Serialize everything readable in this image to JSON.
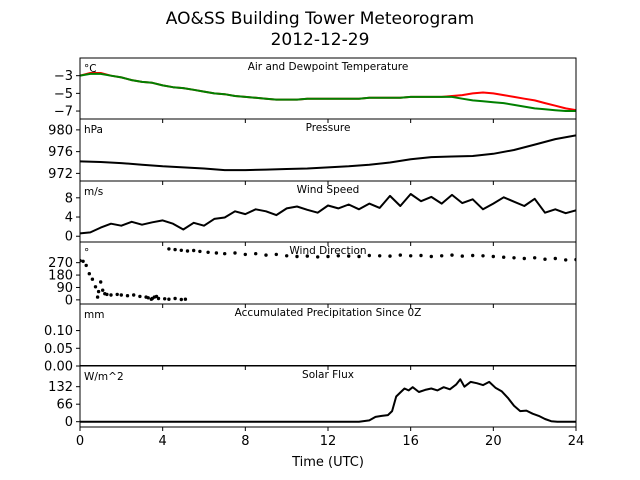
{
  "figure": {
    "title": "AO&SS Building Tower Meteorogram",
    "subtitle": "2012-12-29",
    "xlabel": "Time (UTC)",
    "x_ticks": [
      0,
      4,
      8,
      12,
      16,
      20,
      24
    ],
    "xlim": [
      0,
      24
    ]
  },
  "chart_data": [
    {
      "id": "temperature",
      "type": "line",
      "title": "Air and Dewpoint Temperature",
      "unit_label": "°C",
      "ylim": [
        -7.9,
        -1.0
      ],
      "y_ticks": [
        -3,
        -5,
        -7
      ],
      "y_tick_labels": [
        "−3",
        "−5",
        "−7"
      ],
      "series": [
        {
          "color": "#ff0000",
          "x": [
            0,
            0.5,
            1,
            1.5,
            2,
            2.5,
            3,
            3.5,
            4,
            4.5,
            5,
            5.5,
            6,
            6.5,
            7,
            7.5,
            8,
            8.5,
            9,
            9.5,
            10,
            10.5,
            11,
            11.5,
            12,
            12.5,
            13,
            13.5,
            14,
            14.5,
            15,
            15.5,
            16,
            16.5,
            17,
            17.5,
            18,
            18.5,
            19,
            19.5,
            20,
            20.5,
            21,
            21.5,
            22,
            22.5,
            23,
            23.5,
            24
          ],
          "y": [
            -3.0,
            -2.7,
            -2.7,
            -3.0,
            -3.2,
            -3.5,
            -3.7,
            -3.8,
            -4.1,
            -4.3,
            -4.4,
            -4.6,
            -4.8,
            -5.0,
            -5.1,
            -5.3,
            -5.4,
            -5.5,
            -5.6,
            -5.7,
            -5.7,
            -5.7,
            -5.6,
            -5.6,
            -5.6,
            -5.6,
            -5.6,
            -5.6,
            -5.5,
            -5.5,
            -5.5,
            -5.5,
            -5.4,
            -5.4,
            -5.4,
            -5.4,
            -5.3,
            -5.2,
            -5.0,
            -4.9,
            -5.0,
            -5.2,
            -5.4,
            -5.6,
            -5.8,
            -6.1,
            -6.4,
            -6.7,
            -6.9
          ]
        },
        {
          "color": "#008000",
          "x": [
            0,
            0.5,
            1,
            1.5,
            2,
            2.5,
            3,
            3.5,
            4,
            4.5,
            5,
            5.5,
            6,
            6.5,
            7,
            7.5,
            8,
            8.5,
            9,
            9.5,
            10,
            10.5,
            11,
            11.5,
            12,
            12.5,
            13,
            13.5,
            14,
            14.5,
            15,
            15.5,
            16,
            16.5,
            17,
            17.5,
            18,
            18.5,
            19,
            19.5,
            20,
            20.5,
            21,
            21.5,
            22,
            22.5,
            23,
            23.5,
            24
          ],
          "y": [
            -3.0,
            -2.8,
            -2.8,
            -3.0,
            -3.2,
            -3.5,
            -3.7,
            -3.8,
            -4.1,
            -4.3,
            -4.4,
            -4.6,
            -4.8,
            -5.0,
            -5.1,
            -5.3,
            -5.4,
            -5.5,
            -5.6,
            -5.7,
            -5.7,
            -5.7,
            -5.6,
            -5.6,
            -5.6,
            -5.6,
            -5.6,
            -5.6,
            -5.5,
            -5.5,
            -5.5,
            -5.5,
            -5.4,
            -5.4,
            -5.4,
            -5.4,
            -5.4,
            -5.6,
            -5.8,
            -5.9,
            -6.0,
            -6.1,
            -6.3,
            -6.5,
            -6.7,
            -6.8,
            -6.9,
            -7.0,
            -7.0
          ]
        }
      ]
    },
    {
      "id": "pressure",
      "type": "line",
      "title": "Pressure",
      "unit_label": "hPa",
      "ylim": [
        970.6,
        982.0
      ],
      "y_ticks": [
        980,
        976,
        972
      ],
      "y_tick_labels": [
        "980",
        "976",
        "972"
      ],
      "series": [
        {
          "color": "#000000",
          "x": [
            0,
            1,
            2,
            3,
            4,
            5,
            6,
            7,
            8,
            9,
            10,
            11,
            12,
            13,
            14,
            15,
            16,
            17,
            18,
            19,
            20,
            21,
            22,
            23,
            24
          ],
          "y": [
            974.2,
            974.1,
            973.9,
            973.6,
            973.3,
            973.1,
            972.9,
            972.6,
            972.6,
            972.7,
            972.8,
            972.9,
            973.1,
            973.3,
            973.6,
            974.0,
            974.6,
            975.0,
            975.1,
            975.2,
            975.6,
            976.3,
            977.3,
            978.3,
            979.0
          ]
        }
      ]
    },
    {
      "id": "wind_speed",
      "type": "line",
      "title": "Wind Speed",
      "unit_label": "m/s",
      "ylim": [
        -1.2,
        11.5
      ],
      "y_ticks": [
        8,
        4,
        0
      ],
      "y_tick_labels": [
        "8",
        "4",
        "0"
      ],
      "series": [
        {
          "color": "#000000",
          "x": [
            0,
            0.5,
            1,
            1.5,
            2,
            2.5,
            3,
            3.5,
            4,
            4.5,
            5,
            5.5,
            6,
            6.5,
            7,
            7.5,
            8,
            8.5,
            9,
            9.5,
            10,
            10.5,
            11,
            11.5,
            12,
            12.5,
            13,
            13.5,
            14,
            14.5,
            15,
            15.5,
            16,
            16.5,
            17,
            17.5,
            18,
            18.5,
            19,
            19.5,
            20,
            20.5,
            21,
            21.5,
            22,
            22.5,
            23,
            23.5,
            24
          ],
          "y": [
            0.6,
            0.8,
            1.8,
            2.6,
            2.2,
            3.0,
            2.4,
            2.9,
            3.3,
            2.6,
            1.4,
            2.8,
            2.2,
            3.6,
            3.9,
            5.2,
            4.6,
            5.6,
            5.2,
            4.4,
            5.8,
            6.2,
            5.5,
            4.9,
            6.4,
            5.8,
            6.6,
            5.6,
            6.8,
            5.9,
            8.4,
            6.3,
            8.8,
            7.3,
            8.2,
            6.8,
            8.6,
            6.9,
            7.7,
            5.6,
            6.8,
            8.1,
            7.2,
            6.3,
            7.8,
            4.9,
            5.6,
            4.8,
            5.4
          ]
        }
      ]
    },
    {
      "id": "wind_direction",
      "type": "scatter",
      "title": "Wind Direction",
      "unit_label": "°",
      "ylim": [
        -30,
        420
      ],
      "y_ticks": [
        270,
        180,
        90,
        0
      ],
      "y_tick_labels": [
        "270",
        "180",
        "90",
        "0"
      ],
      "series": [
        {
          "color": "#000000",
          "x": [
            0,
            0.15,
            0.3,
            0.45,
            0.6,
            0.75,
            0.85,
            0.9,
            1.0,
            1.1,
            1.2,
            1.3,
            1.5,
            1.8,
            2.0,
            2.3,
            2.6,
            2.9,
            3.2,
            3.5,
            3.7,
            3.3,
            3.45,
            3.6,
            3.8,
            4.1,
            4.3,
            4.6,
            4.9,
            5.1,
            4.3,
            4.6,
            4.9,
            5.2,
            5.5,
            5.8,
            6.2,
            6.6,
            7.0,
            7.5,
            8.0,
            8.5,
            9.0,
            9.5,
            10.0,
            10.5,
            11.0,
            11.5,
            12.0,
            12.5,
            13.0,
            13.5,
            14.0,
            14.5,
            15.0,
            15.5,
            16.0,
            16.5,
            17.0,
            17.5,
            18.0,
            18.5,
            19.0,
            19.5,
            20.0,
            20.5,
            21.0,
            21.5,
            22.0,
            22.5,
            23.0,
            23.5,
            24.0
          ],
          "y": [
            285,
            280,
            250,
            190,
            150,
            95,
            20,
            60,
            130,
            70,
            45,
            40,
            35,
            40,
            35,
            30,
            35,
            25,
            20,
            10,
            25,
            15,
            5,
            20,
            10,
            8,
            5,
            10,
            3,
            5,
            370,
            365,
            360,
            355,
            358,
            352,
            345,
            340,
            335,
            340,
            330,
            335,
            325,
            330,
            320,
            315,
            318,
            312,
            315,
            320,
            318,
            315,
            322,
            320,
            318,
            325,
            320,
            322,
            315,
            320,
            325,
            318,
            322,
            320,
            315,
            310,
            305,
            300,
            305,
            295,
            300,
            290,
            292
          ]
        }
      ]
    },
    {
      "id": "precipitation",
      "type": "line",
      "title": "Accumulated Precipitation Since 0Z",
      "unit_label": "mm",
      "ylim": [
        0.0,
        0.175
      ],
      "y_ticks": [
        0.1,
        0.05,
        0.0
      ],
      "y_tick_labels": [
        "0.10",
        "0.05",
        "0.00"
      ],
      "series": [
        {
          "color": "#000000",
          "x": [
            0,
            24
          ],
          "y": [
            0.0,
            0.0
          ]
        }
      ]
    },
    {
      "id": "solar_flux",
      "type": "line",
      "title": "Solar Flux",
      "unit_label": "W/m^2",
      "ylim": [
        -20,
        210
      ],
      "y_ticks": [
        132,
        66,
        0
      ],
      "y_tick_labels": [
        "132",
        "66",
        "0"
      ],
      "series": [
        {
          "color": "#000000",
          "x": [
            0,
            13.5,
            14.0,
            14.3,
            14.6,
            14.9,
            15.1,
            15.3,
            15.5,
            15.7,
            15.9,
            16.1,
            16.4,
            16.7,
            17.0,
            17.3,
            17.6,
            17.9,
            18.2,
            18.4,
            18.6,
            18.9,
            19.2,
            19.5,
            19.8,
            20.1,
            20.4,
            20.7,
            21.0,
            21.3,
            21.6,
            21.9,
            22.2,
            22.5,
            22.8,
            23.1,
            24.0
          ],
          "y": [
            0,
            0,
            5,
            18,
            22,
            25,
            40,
            95,
            110,
            125,
            118,
            130,
            112,
            120,
            125,
            118,
            130,
            122,
            140,
            160,
            132,
            150,
            145,
            138,
            150,
            128,
            115,
            90,
            60,
            40,
            42,
            30,
            22,
            10,
            2,
            0,
            0
          ]
        }
      ]
    }
  ]
}
